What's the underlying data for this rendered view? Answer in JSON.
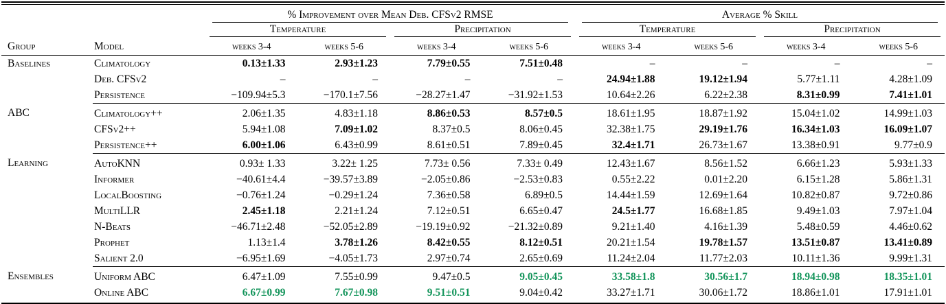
{
  "colors": {
    "highlight_green": "#12945a"
  },
  "header": {
    "group_label": "Group",
    "model_label": "Model",
    "supergroup_1": "% Improvement over Mean Deb. CFSv2 RMSE",
    "supergroup_2": "Average % Skill",
    "subgroups": [
      "Temperature",
      "Precipitation",
      "Temperature",
      "Precipitation"
    ],
    "week_labels": [
      "weeks 3-4",
      "weeks 5-6",
      "weeks 3-4",
      "weeks 5-6",
      "weeks 3-4",
      "weeks 5-6",
      "weeks 3-4",
      "weeks 5-6"
    ]
  },
  "sections": [
    {
      "group": "Baselines",
      "rows": [
        {
          "model": "Climatology",
          "cells": [
            {
              "v": "0.13±1.33",
              "s": "b"
            },
            {
              "v": "2.93±1.23",
              "s": "b"
            },
            {
              "v": "7.79±0.55",
              "s": "b"
            },
            {
              "v": "7.51±0.48",
              "s": "b"
            },
            {
              "v": "–"
            },
            {
              "v": "–"
            },
            {
              "v": "–"
            },
            {
              "v": "–"
            }
          ]
        },
        {
          "model": "Deb. CFSv2",
          "cells": [
            {
              "v": "–"
            },
            {
              "v": "–"
            },
            {
              "v": "–"
            },
            {
              "v": "–"
            },
            {
              "v": "24.94±1.88",
              "s": "b"
            },
            {
              "v": "19.12±1.94",
              "s": "b"
            },
            {
              "v": "5.77±1.11"
            },
            {
              "v": "4.28±1.09"
            }
          ]
        },
        {
          "model": "Persistence",
          "cells": [
            {
              "v": "−109.94±5.3"
            },
            {
              "v": "−170.1±7.56"
            },
            {
              "v": "−28.27±1.47"
            },
            {
              "v": "−31.92±1.53"
            },
            {
              "v": "10.64±2.26"
            },
            {
              "v": "6.22±2.38"
            },
            {
              "v": "8.31±0.99",
              "s": "b"
            },
            {
              "v": "7.41±1.01",
              "s": "b"
            }
          ]
        }
      ]
    },
    {
      "group": "ABC",
      "rows": [
        {
          "model": "Climatology++",
          "cells": [
            {
              "v": "2.06±1.35"
            },
            {
              "v": "4.83±1.18"
            },
            {
              "v": "8.86±0.53",
              "s": "b"
            },
            {
              "v": "8.57±0.5",
              "s": "b"
            },
            {
              "v": "18.61±1.95"
            },
            {
              "v": "18.87±1.92"
            },
            {
              "v": "15.04±1.02"
            },
            {
              "v": "14.99±1.03"
            }
          ]
        },
        {
          "model": "CFSv2++",
          "cells": [
            {
              "v": "5.94±1.08"
            },
            {
              "v": "7.09±1.02",
              "s": "b"
            },
            {
              "v": "8.37±0.5"
            },
            {
              "v": "8.06±0.45"
            },
            {
              "v": "32.38±1.75"
            },
            {
              "v": "29.19±1.76",
              "s": "b"
            },
            {
              "v": "16.34±1.03",
              "s": "b"
            },
            {
              "v": "16.09±1.07",
              "s": "b"
            }
          ]
        },
        {
          "model": "Persistence++",
          "cells": [
            {
              "v": "6.00±1.06",
              "s": "b"
            },
            {
              "v": "6.43±0.99"
            },
            {
              "v": "8.61±0.51"
            },
            {
              "v": "7.89±0.45"
            },
            {
              "v": "32.4±1.71",
              "s": "b"
            },
            {
              "v": "26.73±1.67"
            },
            {
              "v": "13.38±0.91"
            },
            {
              "v": "9.77±0.9"
            }
          ]
        }
      ]
    },
    {
      "group": "Learning",
      "rows": [
        {
          "model": "AutoKNN",
          "cells": [
            {
              "v": "0.93± 1.33"
            },
            {
              "v": "3.22± 1.25"
            },
            {
              "v": "7.73± 0.56"
            },
            {
              "v": "7.33± 0.49"
            },
            {
              "v": "12.43±1.67"
            },
            {
              "v": "8.56±1.52"
            },
            {
              "v": "6.66±1.23"
            },
            {
              "v": "5.93±1.33"
            }
          ]
        },
        {
          "model": "Informer",
          "cells": [
            {
              "v": "−40.61±4.4"
            },
            {
              "v": "−39.57±3.89"
            },
            {
              "v": "−2.05±0.86"
            },
            {
              "v": "−2.53±0.83"
            },
            {
              "v": "0.55±2.22"
            },
            {
              "v": "0.01±2.20"
            },
            {
              "v": "6.15±1.28"
            },
            {
              "v": "5.86±1.31"
            }
          ]
        },
        {
          "model": "LocalBoosting",
          "cells": [
            {
              "v": "−0.76±1.24"
            },
            {
              "v": "−0.29±1.24"
            },
            {
              "v": "7.36±0.58"
            },
            {
              "v": "6.89±0.5"
            },
            {
              "v": "14.44±1.59"
            },
            {
              "v": "12.69±1.64"
            },
            {
              "v": "10.82±0.87"
            },
            {
              "v": "9.72±0.86"
            }
          ]
        },
        {
          "model": "MultiLLR",
          "cells": [
            {
              "v": "2.45±1.18",
              "s": "b"
            },
            {
              "v": "2.21±1.24"
            },
            {
              "v": "7.12±0.51"
            },
            {
              "v": "6.65±0.47"
            },
            {
              "v": "24.5±1.77",
              "s": "b"
            },
            {
              "v": "16.68±1.85"
            },
            {
              "v": "9.49±1.03"
            },
            {
              "v": "7.97±1.04"
            }
          ]
        },
        {
          "model": "N-Beats",
          "cells": [
            {
              "v": "−46.71±2.48"
            },
            {
              "v": "−52.05±2.89"
            },
            {
              "v": "−19.19±0.92"
            },
            {
              "v": "−21.32±0.89"
            },
            {
              "v": "9.21±1.40"
            },
            {
              "v": "4.16±1.39"
            },
            {
              "v": "5.48±0.59"
            },
            {
              "v": "4.46±0.62"
            }
          ]
        },
        {
          "model": "Prophet",
          "cells": [
            {
              "v": "1.13±1.4"
            },
            {
              "v": "3.78±1.26",
              "s": "b"
            },
            {
              "v": "8.42±0.55",
              "s": "b"
            },
            {
              "v": "8.12±0.51",
              "s": "b"
            },
            {
              "v": "20.21±1.54"
            },
            {
              "v": "19.78±1.57",
              "s": "b"
            },
            {
              "v": "13.51±0.87",
              "s": "b"
            },
            {
              "v": "13.41±0.89",
              "s": "b"
            }
          ]
        },
        {
          "model": "Salient 2.0",
          "cells": [
            {
              "v": "−6.95±1.69"
            },
            {
              "v": "−4.05±1.73"
            },
            {
              "v": "2.97±0.74"
            },
            {
              "v": "2.65±0.69"
            },
            {
              "v": "11.24±2.04"
            },
            {
              "v": "11.77±2.03"
            },
            {
              "v": "10.11±1.36"
            },
            {
              "v": "9.99±1.31"
            }
          ]
        }
      ]
    },
    {
      "group": "Ensembles",
      "rows": [
        {
          "model": "Uniform ABC",
          "cells": [
            {
              "v": "6.47±1.09"
            },
            {
              "v": "7.55±0.99"
            },
            {
              "v": "9.47±0.5"
            },
            {
              "v": "9.05±0.45",
              "s": "g"
            },
            {
              "v": "33.58±1.8",
              "s": "g"
            },
            {
              "v": "30.56±1.7",
              "s": "g"
            },
            {
              "v": "18.94±0.98",
              "s": "g"
            },
            {
              "v": "18.35±1.01",
              "s": "g"
            }
          ]
        },
        {
          "model": "Online ABC",
          "cells": [
            {
              "v": "6.67±0.99",
              "s": "g"
            },
            {
              "v": "7.67±0.98",
              "s": "g"
            },
            {
              "v": "9.51±0.51",
              "s": "g"
            },
            {
              "v": "9.04±0.42"
            },
            {
              "v": "33.27±1.71"
            },
            {
              "v": "30.06±1.72"
            },
            {
              "v": "18.86±1.01"
            },
            {
              "v": "17.91±1.01"
            }
          ]
        }
      ]
    }
  ]
}
